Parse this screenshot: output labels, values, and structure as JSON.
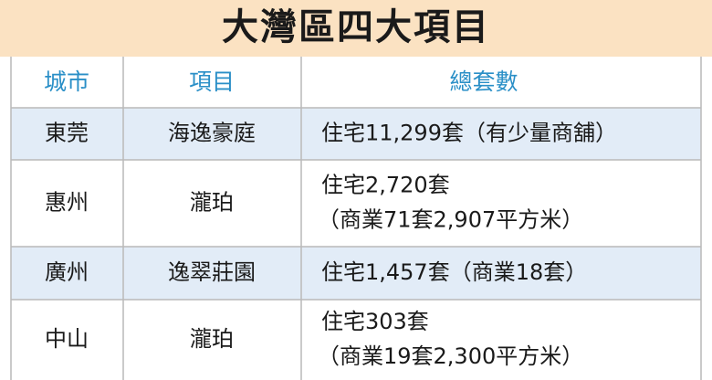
{
  "title": "大灣區四大項目",
  "table": {
    "header": [
      "城市",
      "項目",
      "總套數"
    ],
    "rows": [
      [
        "東莞",
        "海逸豪庭",
        [
          "住宅11,299套（有少量商舖）"
        ]
      ],
      [
        "惠州",
        "瀧珀",
        [
          "住宅2,720套",
          "（商業71套2,907平方米）"
        ]
      ],
      [
        "廣州",
        "逸翠莊園",
        [
          "住宅1,457套（商業18套）"
        ]
      ],
      [
        "中山",
        "瀧珀",
        [
          "住宅303套",
          "（商業19套2,300平方米）"
        ]
      ]
    ]
  }
}
